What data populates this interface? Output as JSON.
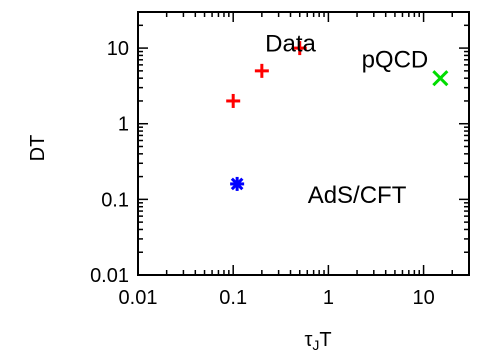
{
  "chart_data": {
    "type": "scatter",
    "title": "",
    "xlabel": "τJT",
    "ylabel": "DT",
    "xscale": "log",
    "yscale": "log",
    "xlim": [
      0.01,
      30
    ],
    "ylim": [
      0.01,
      30
    ],
    "xticks": [
      {
        "value": 0.01,
        "label": "0.01"
      },
      {
        "value": 0.1,
        "label": "0.1"
      },
      {
        "value": 1,
        "label": "1"
      },
      {
        "value": 10,
        "label": "10"
      }
    ],
    "yticks": [
      {
        "value": 0.01,
        "label": "0.01"
      },
      {
        "value": 0.1,
        "label": "0.1"
      },
      {
        "value": 1,
        "label": "1"
      },
      {
        "value": 10,
        "label": "10"
      }
    ],
    "series": [
      {
        "name": "Data",
        "marker": "plus",
        "color": "#ff0000",
        "points": [
          {
            "x": 0.1,
            "y": 2
          },
          {
            "x": 0.2,
            "y": 5
          },
          {
            "x": 0.5,
            "y": 10
          }
        ]
      },
      {
        "name": "AdS/CFT",
        "marker": "asterisk",
        "color": "#0000ff",
        "points": [
          {
            "x": 0.11,
            "y": 0.16
          }
        ]
      },
      {
        "name": "pQCD",
        "marker": "cross",
        "color": "#00dd00",
        "points": [
          {
            "x": 15,
            "y": 4
          }
        ]
      }
    ],
    "annotations": [
      {
        "text": "Data",
        "x": 0.4,
        "y": 9
      },
      {
        "text": "AdS/CFT",
        "x": 2.0,
        "y": 0.09
      },
      {
        "text": "pQCD",
        "x": 5,
        "y": 5.5
      }
    ],
    "grid": false
  }
}
